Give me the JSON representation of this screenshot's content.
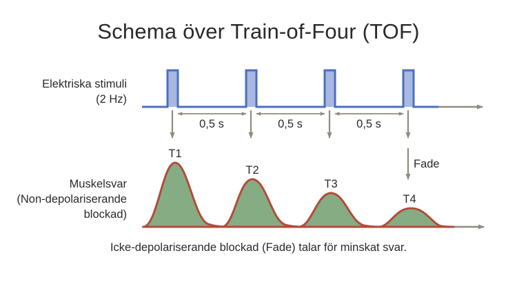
{
  "title": "Schema över Train-of-Four (TOF)",
  "stimulus_label": {
    "line1": "Elektriska stimuli",
    "line2": "(2 Hz)"
  },
  "muscle_label": {
    "line1": "Muskelsvar",
    "line2": "(Non-depolariserande",
    "line3": "blockad)"
  },
  "interval_labels": [
    "0,5 s",
    "0,5 s",
    "0,5 s"
  ],
  "twitches": [
    {
      "label": "T1",
      "relative_height": 1.0
    },
    {
      "label": "T2",
      "relative_height": 0.71
    },
    {
      "label": "T3",
      "relative_height": 0.52
    },
    {
      "label": "T4",
      "relative_height": 0.28
    }
  ],
  "fade_label": "Fade",
  "caption": "Icke-depolariserande blockad (Fade) talar för minskat svar.",
  "colors": {
    "pulse_fill": "#a9b8e0",
    "pulse_stroke": "#4a6fc0",
    "axis": "#8f8a82",
    "twitch_fill": "#86ac84",
    "twitch_stroke": "#b24c3a"
  }
}
